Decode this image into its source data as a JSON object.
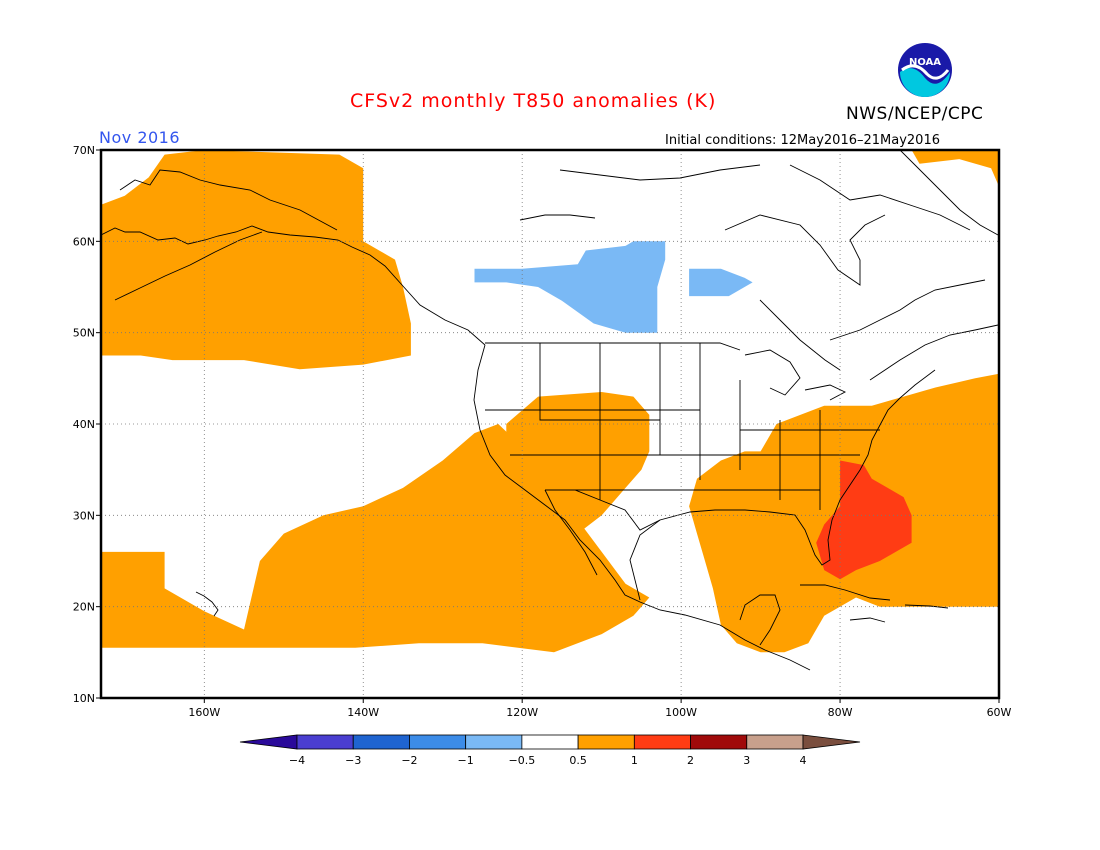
{
  "title": "CFSv2 monthly T850 anomalies (K)",
  "agency": "NWS/NCEP/CPC",
  "logo_text": "NOAA",
  "forecast_month": "Nov 2016",
  "initial_conditions": "Initial conditions: 12May2016–21May2016",
  "map": {
    "lon_range": [
      -173,
      -60
    ],
    "lat_range": [
      10,
      70
    ],
    "lon_ticks": [
      {
        "value": -160,
        "label": "160W"
      },
      {
        "value": -140,
        "label": "140W"
      },
      {
        "value": -120,
        "label": "120W"
      },
      {
        "value": -100,
        "label": "100W"
      },
      {
        "value": -80,
        "label": "80W"
      },
      {
        "value": -60,
        "label": "60W"
      }
    ],
    "lat_ticks": [
      {
        "value": 10,
        "label": "10N"
      },
      {
        "value": 20,
        "label": "20N"
      },
      {
        "value": 30,
        "label": "30N"
      },
      {
        "value": 40,
        "label": "40N"
      },
      {
        "value": 50,
        "label": "50N"
      },
      {
        "value": 60,
        "label": "60N"
      },
      {
        "value": 70,
        "label": "70N"
      }
    ],
    "grid": "dotted"
  },
  "colorbar": {
    "bins": [
      {
        "color": "#2a0a9a"
      },
      {
        "color": "#4a3ed0"
      },
      {
        "color": "#1f64d0"
      },
      {
        "color": "#3c8ce8"
      },
      {
        "color": "#7ab9f5"
      },
      {
        "color": "#ffffff"
      },
      {
        "color": "#ffa000"
      },
      {
        "color": "#ff3c14"
      },
      {
        "color": "#a00a0a"
      },
      {
        "color": "#c8a08c"
      },
      {
        "color": "#7a4e3e"
      }
    ],
    "labels": [
      "−4",
      "−3",
      "−2",
      "−1",
      "−0.5",
      "0.5",
      "1",
      "2",
      "3",
      "4"
    ]
  },
  "regions": [
    {
      "name": "alaska-gulf-warm",
      "bin": "0.5 to 1",
      "color": "#ffa000",
      "polygon": [
        [
          -173,
          62
        ],
        [
          -173,
          47.5
        ],
        [
          -168,
          47.5
        ],
        [
          -164,
          47
        ],
        [
          -155,
          47
        ],
        [
          -148,
          46
        ],
        [
          -140,
          46.5
        ],
        [
          -134,
          47.5
        ],
        [
          -134,
          51
        ],
        [
          -135,
          55
        ],
        [
          -136,
          58
        ],
        [
          -140,
          60
        ],
        [
          -140,
          68
        ],
        [
          -143,
          69.5
        ],
        [
          -160,
          70
        ],
        [
          -165,
          69.5
        ],
        [
          -167,
          67
        ],
        [
          -170,
          65
        ],
        [
          -173,
          64
        ]
      ]
    },
    {
      "name": "southwest-us-warm",
      "bin": "0.5 to 1",
      "color": "#ffa000",
      "polygon": [
        [
          -122,
          40
        ],
        [
          -118,
          43
        ],
        [
          -110,
          43.5
        ],
        [
          -106,
          43
        ],
        [
          -104,
          41
        ],
        [
          -104,
          37
        ],
        [
          -105,
          35
        ],
        [
          -107,
          33
        ],
        [
          -110,
          30
        ],
        [
          -113,
          28
        ],
        [
          -116,
          30
        ],
        [
          -119,
          34
        ],
        [
          -122,
          37.5
        ]
      ]
    },
    {
      "name": "pacific-subtropical-warm",
      "bin": "0.5 to 1",
      "color": "#ffa000",
      "polygon": [
        [
          -173,
          26
        ],
        [
          -165,
          26
        ],
        [
          -165,
          22
        ],
        [
          -160,
          19.5
        ],
        [
          -155,
          17.5
        ],
        [
          -153,
          25
        ],
        [
          -150,
          28
        ],
        [
          -145,
          30
        ],
        [
          -140,
          31
        ],
        [
          -135,
          33
        ],
        [
          -130,
          36
        ],
        [
          -126,
          39
        ],
        [
          -123,
          40
        ],
        [
          -120,
          37.5
        ],
        [
          -116,
          33
        ],
        [
          -113,
          29.5
        ],
        [
          -110,
          26
        ],
        [
          -107,
          22.5
        ],
        [
          -104,
          21
        ],
        [
          -106,
          19
        ],
        [
          -110,
          17
        ],
        [
          -116,
          15
        ],
        [
          -125,
          16
        ],
        [
          -133,
          16
        ],
        [
          -141,
          15.5
        ],
        [
          -155,
          15.5
        ],
        [
          -165,
          15.5
        ],
        [
          -173,
          15.5
        ]
      ]
    },
    {
      "name": "southeast-us-caribbean-warm",
      "bin": "0.5 to 1",
      "color": "#ffa000",
      "polygon": [
        [
          -98,
          34
        ],
        [
          -95,
          36
        ],
        [
          -92,
          37
        ],
        [
          -90,
          37
        ],
        [
          -88,
          40
        ],
        [
          -85,
          41
        ],
        [
          -82,
          42
        ],
        [
          -76,
          42
        ],
        [
          -72,
          43
        ],
        [
          -68,
          44
        ],
        [
          -63,
          45
        ],
        [
          -60,
          45.5
        ],
        [
          -60,
          20
        ],
        [
          -64,
          20
        ],
        [
          -70,
          20
        ],
        [
          -75,
          20
        ],
        [
          -78,
          21
        ],
        [
          -82,
          19
        ],
        [
          -84,
          16
        ],
        [
          -87,
          15
        ],
        [
          -90,
          15
        ],
        [
          -93,
          16
        ],
        [
          -95,
          18
        ],
        [
          -96,
          22
        ],
        [
          -97,
          25
        ],
        [
          -98,
          28
        ],
        [
          -99,
          31
        ]
      ]
    },
    {
      "name": "atlantic-far-north-warm",
      "bin": "0.5 to 1",
      "color": "#ffa000",
      "polygon": [
        [
          -71,
          70
        ],
        [
          -60,
          70
        ],
        [
          -60,
          66
        ],
        [
          -61,
          68
        ],
        [
          -65,
          69
        ],
        [
          -70,
          68.5
        ]
      ]
    },
    {
      "name": "atlantic-strong-warm",
      "bin": "1 to 2",
      "color": "#ff3c14",
      "polygon": [
        [
          -80,
          36
        ],
        [
          -77,
          35.5
        ],
        [
          -76,
          34
        ],
        [
          -74,
          33
        ],
        [
          -72,
          32
        ],
        [
          -71,
          30
        ],
        [
          -71,
          27
        ],
        [
          -73,
          26
        ],
        [
          -75,
          25
        ],
        [
          -78,
          24
        ],
        [
          -80,
          23
        ],
        [
          -82,
          24
        ],
        [
          -83,
          27
        ],
        [
          -82,
          29
        ],
        [
          -80,
          31
        ],
        [
          -80,
          33
        ]
      ]
    },
    {
      "name": "canada-cool",
      "bin": "-1 to -0.5",
      "color": "#7ab9f5",
      "polygon": [
        [
          -126,
          57
        ],
        [
          -120,
          57
        ],
        [
          -113,
          57.5
        ],
        [
          -112,
          59
        ],
        [
          -107,
          59.5
        ],
        [
          -106,
          60
        ],
        [
          -102,
          60
        ],
        [
          -102,
          58
        ],
        [
          -103,
          55
        ],
        [
          -103,
          50
        ],
        [
          -107,
          50
        ],
        [
          -111,
          51
        ],
        [
          -115,
          53.5
        ],
        [
          -118,
          55
        ],
        [
          -122,
          55.5
        ],
        [
          -126,
          55.5
        ]
      ]
    },
    {
      "name": "hudson-cool",
      "bin": "-1 to -0.5",
      "color": "#7ab9f5",
      "polygon": [
        [
          -99,
          57
        ],
        [
          -95,
          57
        ],
        [
          -92,
          56
        ],
        [
          -91,
          55.5
        ],
        [
          -94,
          54
        ],
        [
          -99,
          54
        ]
      ]
    }
  ]
}
